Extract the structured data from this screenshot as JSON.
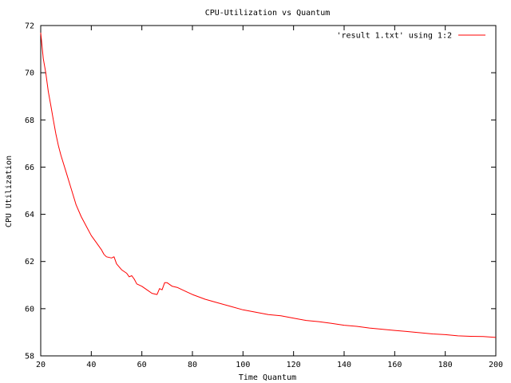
{
  "chart_data": {
    "type": "line",
    "title": "CPU-Utilization vs Quantum",
    "xlabel": "Time Quantum",
    "ylabel": "CPU Utilization",
    "xlim": [
      20,
      200
    ],
    "ylim": [
      58,
      72
    ],
    "xticks": [
      20,
      40,
      60,
      80,
      100,
      120,
      140,
      160,
      180,
      200
    ],
    "yticks": [
      58,
      60,
      62,
      64,
      66,
      68,
      70,
      72
    ],
    "grid": false,
    "legend_position": "top-right",
    "series": [
      {
        "name": "'result 1.txt' using 1:2",
        "color": "#ff0000",
        "x": [
          20,
          21,
          22,
          23,
          24,
          25,
          26,
          27,
          28,
          30,
          32,
          34,
          36,
          38,
          40,
          42,
          44,
          45,
          46,
          48,
          49,
          50,
          52,
          54,
          55,
          56,
          57,
          58,
          60,
          62,
          64,
          66,
          67,
          68,
          69,
          70,
          72,
          74,
          76,
          78,
          80,
          85,
          90,
          95,
          100,
          105,
          110,
          115,
          120,
          125,
          130,
          135,
          140,
          145,
          150,
          155,
          160,
          165,
          170,
          175,
          180,
          185,
          190,
          195,
          200
        ],
        "y": [
          71.7,
          70.6,
          70.0,
          69.2,
          68.6,
          68.0,
          67.4,
          66.9,
          66.5,
          65.8,
          65.1,
          64.4,
          63.9,
          63.5,
          63.1,
          62.8,
          62.5,
          62.3,
          62.2,
          62.15,
          62.2,
          61.9,
          61.65,
          61.5,
          61.35,
          61.4,
          61.25,
          61.05,
          60.95,
          60.8,
          60.65,
          60.6,
          60.85,
          60.8,
          61.1,
          61.1,
          60.95,
          60.9,
          60.8,
          60.7,
          60.6,
          60.4,
          60.25,
          60.1,
          59.95,
          59.85,
          59.75,
          59.7,
          59.6,
          59.5,
          59.45,
          59.38,
          59.3,
          59.25,
          59.18,
          59.13,
          59.08,
          59.03,
          58.98,
          58.93,
          58.9,
          58.85,
          58.83,
          58.82,
          58.78
        ]
      }
    ]
  }
}
